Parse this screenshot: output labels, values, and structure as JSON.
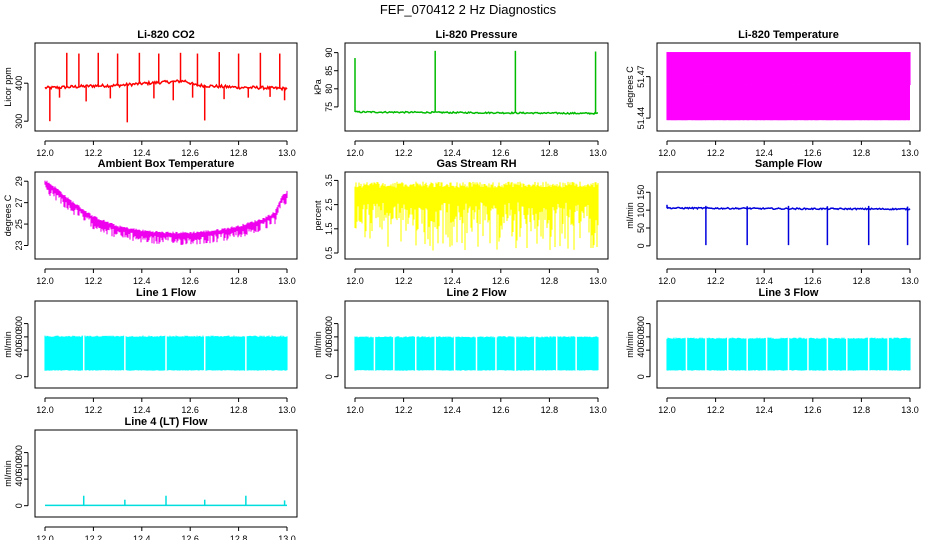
{
  "page": {
    "title": "FEF_070412  2 Hz Diagnostics"
  },
  "colors": {
    "axis": "#000000",
    "frame": "#000000"
  },
  "chart_data": [
    {
      "id": "co2",
      "type": "line",
      "title": "Li-820 CO2",
      "ylabel": "Licor ppm",
      "color": "#ff0000",
      "xlim": [
        12.0,
        13.0
      ],
      "ylim": [
        290,
        490
      ],
      "xticks": [
        "12.0",
        "12.2",
        "12.4",
        "12.6",
        "12.8",
        "13.0"
      ],
      "yticks": [
        {
          "v": 300,
          "label": "300"
        },
        {
          "v": 400,
          "label": "400"
        }
      ],
      "baseline": [
        [
          12.02,
          388
        ],
        [
          12.1,
          390
        ],
        [
          12.2,
          393
        ],
        [
          12.3,
          394
        ],
        [
          12.4,
          399
        ],
        [
          12.5,
          403
        ],
        [
          12.58,
          406
        ],
        [
          12.62,
          395
        ],
        [
          12.7,
          392
        ],
        [
          12.8,
          389
        ],
        [
          12.9,
          388
        ],
        [
          12.98,
          386
        ]
      ],
      "noise": 4,
      "spikes_up": [
        [
          12.09,
          480
        ],
        [
          12.14,
          478
        ],
        [
          12.22,
          480
        ],
        [
          12.3,
          478
        ],
        [
          12.39,
          480
        ],
        [
          12.47,
          478
        ],
        [
          12.56,
          480
        ],
        [
          12.63,
          478
        ],
        [
          12.72,
          482
        ],
        [
          12.8,
          478
        ],
        [
          12.89,
          480
        ],
        [
          12.97,
          478
        ]
      ],
      "spikes_down": [
        [
          12.02,
          300
        ],
        [
          12.06,
          362
        ],
        [
          12.17,
          352
        ],
        [
          12.27,
          360
        ],
        [
          12.34,
          297
        ],
        [
          12.45,
          360
        ],
        [
          12.53,
          355
        ],
        [
          12.61,
          362
        ],
        [
          12.66,
          302
        ],
        [
          12.74,
          358
        ],
        [
          12.84,
          362
        ],
        [
          12.93,
          364
        ],
        [
          12.99,
          355
        ]
      ]
    },
    {
      "id": "pressure",
      "type": "line",
      "title": "Li-820 Pressure",
      "ylabel": "kPa",
      "color": "#00bb00",
      "xlim": [
        12.0,
        13.0
      ],
      "ylim": [
        70,
        91
      ],
      "xticks": [
        "12.0",
        "12.2",
        "12.4",
        "12.6",
        "12.8",
        "13.0"
      ],
      "yticks": [
        {
          "v": 75,
          "label": "75"
        },
        {
          "v": 80,
          "label": "80"
        },
        {
          "v": 85,
          "label": "85"
        },
        {
          "v": 90,
          "label": "90"
        }
      ],
      "baseline": [
        [
          12.0,
          73.6
        ],
        [
          12.5,
          73.4
        ],
        [
          13.0,
          73.2
        ]
      ],
      "noise": 0.2,
      "spikes_up": [
        [
          12.0,
          88.5
        ],
        [
          12.33,
          90.5
        ],
        [
          12.66,
          90.5
        ],
        [
          12.99,
          90.3
        ]
      ],
      "spikes_down": []
    },
    {
      "id": "licor_temp",
      "type": "band",
      "title": "Li-820 Temperature",
      "ylabel": "degrees C",
      "color": "#ff00ff",
      "xlim": [
        12.0,
        13.0
      ],
      "ylim": [
        51.435,
        51.49
      ],
      "xticks": [
        "12.0",
        "12.2",
        "12.4",
        "12.6",
        "12.8",
        "13.0"
      ],
      "yticks": [
        {
          "v": 51.44,
          "label": "51.44"
        },
        {
          "v": 51.47,
          "label": "51.47"
        }
      ],
      "low": 51.4385,
      "high": 51.4878,
      "mid": 51.4643,
      "fill_extent": [
        12.0,
        13.0
      ],
      "gap_density": 0.7
    },
    {
      "id": "box_temp",
      "type": "band",
      "title": "Ambient Box Temperature",
      "ylabel": "degrees C",
      "color": "#ee00ee",
      "xlim": [
        12.0,
        13.0
      ],
      "ylim": [
        22.3,
        29.3
      ],
      "xticks": [
        "12.0",
        "12.2",
        "12.4",
        "12.6",
        "12.8",
        "13.0"
      ],
      "yticks": [
        {
          "v": 23,
          "label": "23"
        },
        {
          "v": 25,
          "label": "25"
        },
        {
          "v": 27,
          "label": "27"
        },
        {
          "v": 29,
          "label": "29"
        }
      ],
      "upper": [
        [
          12.0,
          29.0
        ],
        [
          12.05,
          28.2
        ],
        [
          12.1,
          27.2
        ],
        [
          12.2,
          25.6
        ],
        [
          12.3,
          24.7
        ],
        [
          12.4,
          24.3
        ],
        [
          12.5,
          24.1
        ],
        [
          12.6,
          24.1
        ],
        [
          12.7,
          24.3
        ],
        [
          12.8,
          24.7
        ],
        [
          12.9,
          25.4
        ],
        [
          12.95,
          26.0
        ],
        [
          12.98,
          27.6
        ],
        [
          13.0,
          27.9
        ]
      ],
      "lower_offset": 0.9,
      "fill_extent": [
        12.0,
        13.0
      ]
    },
    {
      "id": "rh",
      "type": "band",
      "title": "Gas Stream RH",
      "ylabel": "percent",
      "color": "#ffff00",
      "xlim": [
        12.0,
        13.0
      ],
      "ylim": [
        0.5,
        3.6
      ],
      "xticks": [
        "12.0",
        "12.2",
        "12.4",
        "12.6",
        "12.8",
        "13.0"
      ],
      "yticks": [
        {
          "v": 0.5,
          "label": "0.5"
        },
        {
          "v": 1.5,
          "label": "1.5"
        },
        {
          "v": 2.5,
          "label": "2.5"
        },
        {
          "v": 3.5,
          "label": "3.5"
        }
      ],
      "low": 0.6,
      "high": 3.45,
      "mid": 2.6,
      "fill_extent": [
        12.0,
        13.0
      ]
    },
    {
      "id": "sample_flow",
      "type": "line",
      "title": "Sample Flow",
      "ylabel": "ml/min",
      "color": "#0000dd",
      "xlim": [
        12.0,
        13.0
      ],
      "ylim": [
        -20,
        190
      ],
      "xticks": [
        "12.0",
        "12.2",
        "12.4",
        "12.6",
        "12.8",
        "13.0"
      ],
      "yticks": [
        {
          "v": 0,
          "label": "0"
        },
        {
          "v": 50,
          "label": "50"
        },
        {
          "v": 100,
          "label": "100"
        },
        {
          "v": 150,
          "label": "150"
        }
      ],
      "baseline": [
        [
          12.0,
          106
        ],
        [
          12.5,
          104
        ],
        [
          13.0,
          103
        ]
      ],
      "noise": 2,
      "spikes_up": [
        [
          12.0,
          115
        ],
        [
          12.16,
          112
        ],
        [
          12.33,
          111
        ],
        [
          12.5,
          112
        ],
        [
          12.66,
          111
        ],
        [
          12.83,
          112
        ],
        [
          12.99,
          110
        ]
      ],
      "spikes_down": [
        [
          12.16,
          2
        ],
        [
          12.33,
          2
        ],
        [
          12.5,
          2
        ],
        [
          12.66,
          2
        ],
        [
          12.83,
          2
        ],
        [
          12.99,
          2
        ]
      ]
    },
    {
      "id": "line1_flow",
      "type": "band",
      "title": "Line 1 Flow",
      "ylabel": "ml/min",
      "color": "#00ffff",
      "xlim": [
        12.0,
        13.0
      ],
      "ylim": [
        -80,
        1050
      ],
      "xticks": [
        "12.0",
        "12.2",
        "12.4",
        "12.6",
        "12.8",
        "13.0"
      ],
      "yticks": [
        {
          "v": 0,
          "label": "0"
        },
        {
          "v": 400,
          "label": "400"
        },
        {
          "v": 600,
          "label": "600"
        },
        {
          "v": 800,
          "label": "800"
        }
      ],
      "low": 90,
      "high": 620,
      "fill_extent": [
        12.0,
        13.0
      ],
      "gaps": [
        12.16,
        12.33,
        12.5,
        12.66,
        12.83
      ]
    },
    {
      "id": "line2_flow",
      "type": "band",
      "title": "Line 2 Flow",
      "ylabel": "ml/min",
      "color": "#00ffff",
      "xlim": [
        12.0,
        13.0
      ],
      "ylim": [
        -80,
        1050
      ],
      "xticks": [
        "12.0",
        "12.2",
        "12.4",
        "12.6",
        "12.8",
        "13.0"
      ],
      "yticks": [
        {
          "v": 0,
          "label": "0"
        },
        {
          "v": 400,
          "label": "400"
        },
        {
          "v": 600,
          "label": "600"
        },
        {
          "v": 800,
          "label": "800"
        }
      ],
      "low": 90,
      "high": 610,
      "fill_extent": [
        12.0,
        13.0
      ],
      "gaps": [
        12.08,
        12.16,
        12.25,
        12.33,
        12.41,
        12.5,
        12.58,
        12.66,
        12.74,
        12.83,
        12.91
      ]
    },
    {
      "id": "line3_flow",
      "type": "band",
      "title": "Line 3 Flow",
      "ylabel": "ml/min",
      "color": "#00ffff",
      "xlim": [
        12.0,
        13.0
      ],
      "ylim": [
        -80,
        1050
      ],
      "xticks": [
        "12.0",
        "12.2",
        "12.4",
        "12.6",
        "12.8",
        "13.0"
      ],
      "yticks": [
        {
          "v": 0,
          "label": "0"
        },
        {
          "v": 400,
          "label": "400"
        },
        {
          "v": 600,
          "label": "600"
        },
        {
          "v": 800,
          "label": "800"
        }
      ],
      "low": 90,
      "high": 590,
      "fill_extent": [
        12.0,
        13.0
      ],
      "gaps": [
        12.08,
        12.16,
        12.25,
        12.33,
        12.41,
        12.5,
        12.58,
        12.66,
        12.74,
        12.83,
        12.91
      ]
    },
    {
      "id": "line4_flow",
      "type": "line",
      "title": "Line 4 (LT) Flow",
      "ylabel": "ml/min",
      "color": "#00dddd",
      "xlim": [
        12.0,
        13.0
      ],
      "ylim": [
        -80,
        1050
      ],
      "xticks": [
        "12.0",
        "12.2",
        "12.4",
        "12.6",
        "12.8",
        "13.0"
      ],
      "yticks": [
        {
          "v": 0,
          "label": "0"
        },
        {
          "v": 400,
          "label": "400"
        },
        {
          "v": 600,
          "label": "600"
        },
        {
          "v": 800,
          "label": "800"
        }
      ],
      "baseline": [
        [
          12.0,
          5
        ],
        [
          13.0,
          5
        ]
      ],
      "noise": 0,
      "spikes_up": [
        [
          12.16,
          150
        ],
        [
          12.33,
          90
        ],
        [
          12.5,
          150
        ],
        [
          12.66,
          90
        ],
        [
          12.83,
          150
        ],
        [
          12.99,
          80
        ]
      ],
      "spikes_down": []
    }
  ]
}
